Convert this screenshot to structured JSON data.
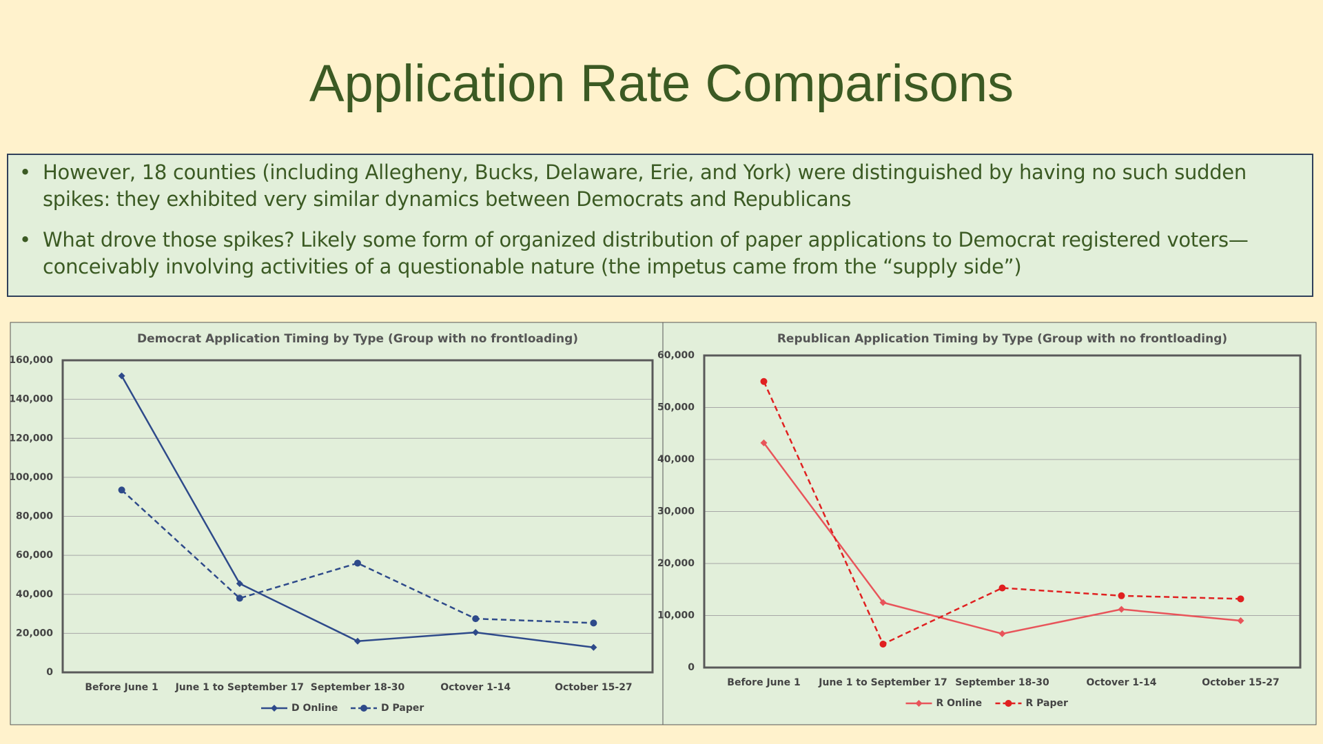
{
  "title": "Application Rate Comparisons",
  "bullets": [
    "However, 18 counties (including Allegheny, Bucks, Delaware, Erie, and York) were distinguished by having no such sudden spikes: they exhibited very similar dynamics between Democrats and Republicans",
    "What drove those spikes?  Likely some form of organized distribution of paper applications to Democrat registered voters—conceivably involving activities of a questionable nature (the impetus came from the “supply side”)"
  ],
  "chart_data": [
    {
      "type": "line",
      "title": "Democrat Application Timing by Type (Group with no frontloading)",
      "categories": [
        "Before June 1",
        "June 1 to September 17",
        "September 18-30",
        "Octover 1-14",
        "October 15-27"
      ],
      "series": [
        {
          "name": "D Online",
          "color": "#2e4a8a",
          "dash": false,
          "marker": "diamond",
          "values": [
            152000,
            45500,
            16000,
            20500,
            12800
          ]
        },
        {
          "name": "D Paper",
          "color": "#2e4a8a",
          "dash": true,
          "marker": "circle",
          "values": [
            93500,
            38000,
            56000,
            27500,
            25300
          ]
        }
      ],
      "ylim": [
        0,
        160000
      ],
      "yticks": [
        0,
        {
          "value": 20000,
          "label": "20,000"
        },
        {
          "value": 40000,
          "label": "40,000"
        },
        {
          "value": 60000,
          "label": "60,000"
        },
        {
          "value": 80000,
          "label": "80,000"
        },
        {
          "value": 100000,
          "label": "100,000"
        },
        {
          "value": 120000,
          "label": "120,000"
        },
        {
          "value": 140000,
          "label": "140,000"
        },
        {
          "value": 160000,
          "label": "160,000"
        }
      ],
      "grid": true,
      "legend": "bottom"
    },
    {
      "type": "line",
      "title": "Republican Application Timing by Type (Group with no frontloading)",
      "categories": [
        "Before June 1",
        "June 1 to September 17",
        "September 18-30",
        "Octover 1-14",
        "October 15-27"
      ],
      "series": [
        {
          "name": "R Online",
          "color": "#e8545a",
          "dash": false,
          "marker": "diamond",
          "values": [
            43200,
            12500,
            6500,
            11200,
            9000
          ]
        },
        {
          "name": "R Paper",
          "color": "#e02020",
          "dash": true,
          "marker": "circle",
          "values": [
            55000,
            4500,
            15300,
            13800,
            13200
          ]
        }
      ],
      "ylim": [
        0,
        60000
      ],
      "yticks": [
        0,
        {
          "value": 10000,
          "label": "10,000"
        },
        {
          "value": 20000,
          "label": "20,000"
        },
        {
          "value": 30000,
          "label": "30,000"
        },
        {
          "value": 40000,
          "label": "40,000"
        },
        {
          "value": 50000,
          "label": "50,000"
        },
        {
          "value": 60000,
          "label": "60,000"
        }
      ],
      "grid": true,
      "legend": "bottom"
    }
  ]
}
